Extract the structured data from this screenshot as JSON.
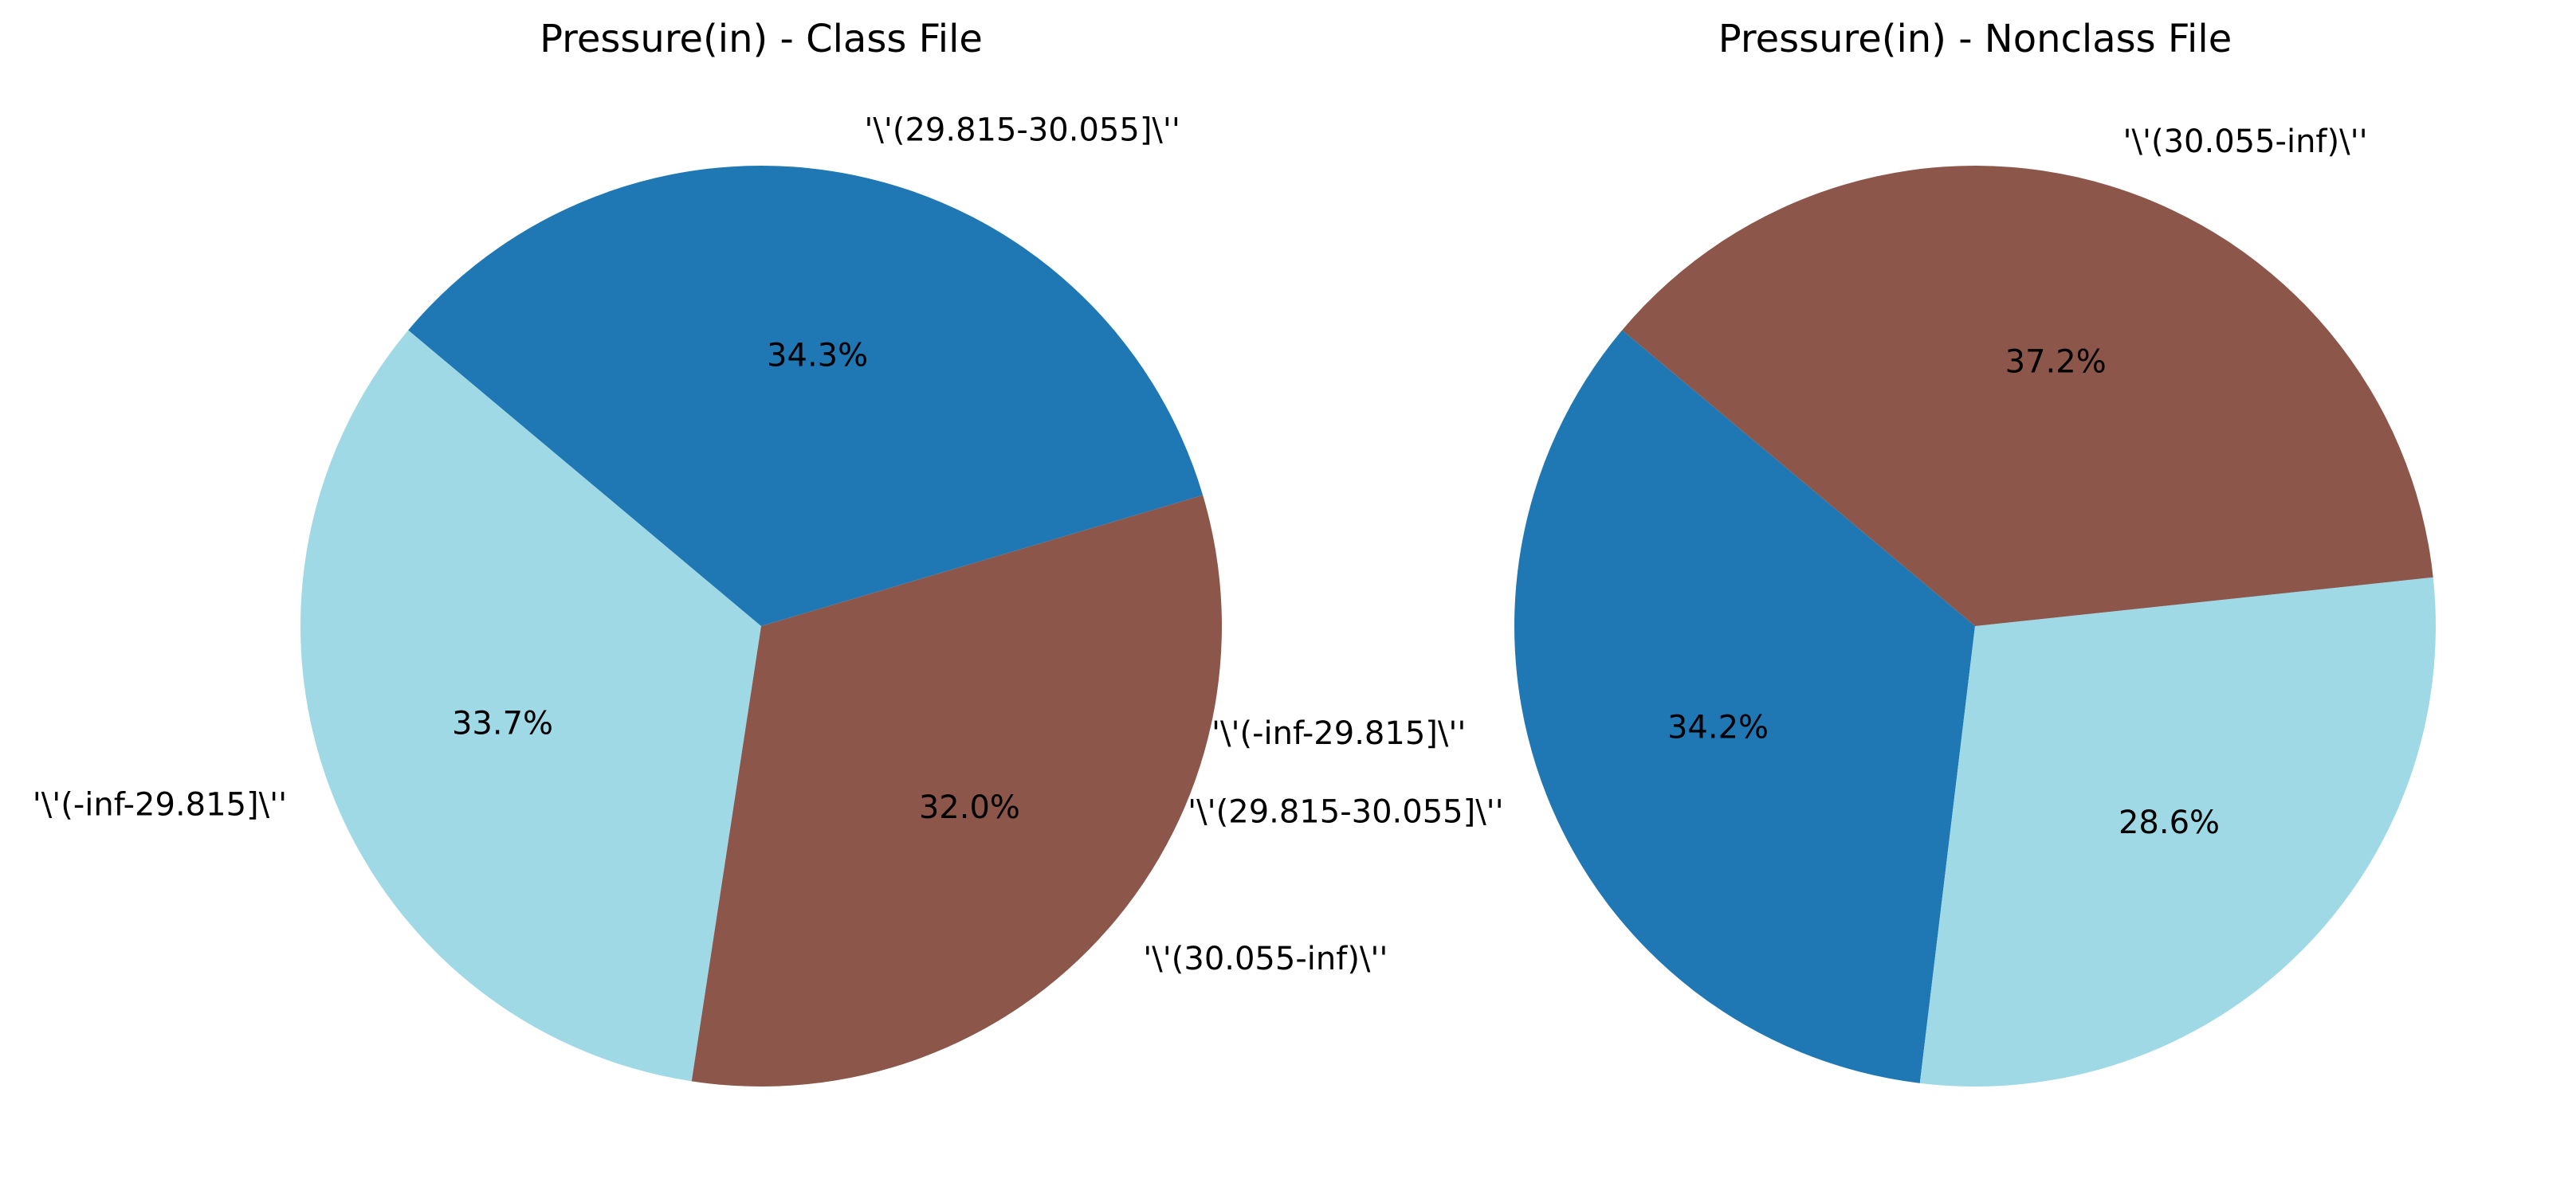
{
  "chart_data": [
    {
      "type": "pie",
      "title": "Pressure(in) - Class File",
      "autopct_format": "%.1f%%",
      "direction": "counterclockwise",
      "slices": [
        {
          "label": "'\\'(-inf-29.815]\\''",
          "value": 33.7,
          "color": "#9ed9e5"
        },
        {
          "label": "'\\'(30.055-inf)\\''",
          "value": 32.0,
          "color": "#8c564b"
        },
        {
          "label": "'\\'(29.815-30.055]\\''",
          "value": 34.3,
          "color": "#1f77b4"
        }
      ],
      "extra_labels": [
        {
          "text": "'\\'(-inf-29.815]\\''"
        }
      ]
    },
    {
      "type": "pie",
      "title": "Pressure(in) - Nonclass File",
      "autopct_format": "%.1f%%",
      "direction": "counterclockwise",
      "slices": [
        {
          "label": "'\\'(29.815-30.055]\\''",
          "value": 34.2,
          "color": "#1f77b4"
        },
        {
          "label": "",
          "value": 28.6,
          "color": "#9ed9e5"
        },
        {
          "label": "'\\'(30.055-inf)\\''",
          "value": 37.2,
          "color": "#8c564b"
        }
      ]
    }
  ]
}
